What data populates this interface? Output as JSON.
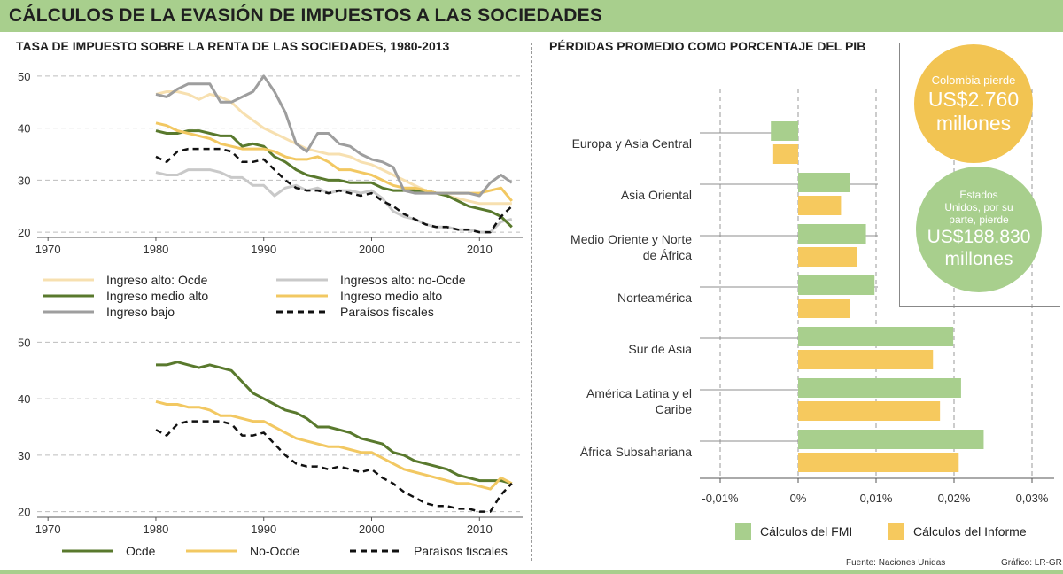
{
  "header": {
    "title": "CÁLCULOS DE LA EVASIÓN DE IMPUESTOS A LAS SOCIEDADES",
    "left_subtitle": "TASA DE IMPUESTO SOBRE LA RENTA DE LAS SOCIEDADES, 1980-2013",
    "right_subtitle": "PÉRDIDAS PROMEDIO COMO PORCENTAJE DEL PIB"
  },
  "colors": {
    "banner": "#a8cf8d",
    "ingreso_alto_ocde": "#f7e0b0",
    "ingresos_alto_no_ocde": "#c9c9c9",
    "ingreso_medio_alto": "#59792d",
    "ingreso_bajo": "#9e9e9e",
    "medio_alto_yellow": "#f2c862",
    "paraisos": "#111111",
    "fmi": "#a8cf8d",
    "informe": "#f6c95e",
    "bubble_yellow": "#f2c452",
    "bubble_green": "#a8cf8d"
  },
  "chart_data": [
    {
      "type": "line",
      "title": "TASA DE IMPUESTO SOBRE LA RENTA DE LAS SOCIEDADES, 1980-2013",
      "x": [
        1980,
        1981,
        1982,
        1983,
        1984,
        1985,
        1986,
        1987,
        1988,
        1989,
        1990,
        1991,
        1992,
        1993,
        1994,
        1995,
        1996,
        1997,
        1998,
        1999,
        2000,
        2001,
        2002,
        2003,
        2004,
        2005,
        2006,
        2007,
        2008,
        2009,
        2010,
        2011,
        2012,
        2013
      ],
      "xlim": [
        1969,
        2014
      ],
      "ylim": [
        19,
        51
      ],
      "xticks": [
        "1970",
        "1980",
        "1990",
        "2000",
        "2010"
      ],
      "yticks": [
        "20",
        "30",
        "40",
        "50"
      ],
      "series": [
        {
          "name": "Ingreso alto: Ocde",
          "style": "solid",
          "color_key": "ingreso_alto_ocde",
          "values": [
            46.5,
            47,
            47,
            46.5,
            45.5,
            46.5,
            46,
            45,
            43,
            41.5,
            40,
            39,
            38,
            37,
            36,
            35.5,
            35,
            35,
            34.5,
            33.5,
            33,
            32,
            31,
            30,
            29,
            28,
            27.5,
            27,
            26.5,
            26,
            25.5,
            25.5,
            25.5,
            25.5
          ]
        },
        {
          "name": "Ingresos alto: no-Ocde",
          "style": "solid",
          "color_key": "ingresos_alto_no_ocde",
          "values": [
            31.5,
            31,
            31,
            32,
            32,
            32,
            31.5,
            30.5,
            30.5,
            29,
            29,
            27,
            28.5,
            29,
            28,
            28.5,
            27.5,
            28,
            28,
            27.5,
            28,
            26.5,
            24,
            23,
            22.5,
            21.5,
            21,
            21,
            20.5,
            20.5,
            20,
            20,
            22,
            22.5
          ]
        },
        {
          "name": "Ingreso medio alto",
          "style": "solid",
          "color_key": "ingreso_medio_alto",
          "values": [
            39.5,
            39,
            39,
            39.5,
            39.5,
            39,
            38.5,
            38.5,
            36.5,
            37,
            36.5,
            34.5,
            33.5,
            32,
            31,
            30.5,
            30,
            30,
            29.5,
            29.5,
            29.5,
            28.5,
            28,
            28,
            28,
            28,
            27.5,
            27,
            26,
            25,
            24.5,
            24,
            23,
            21
          ]
        },
        {
          "name": "Ingreso medio alto",
          "style": "solid",
          "color_key": "medio_alto_yellow",
          "values": [
            41,
            40.5,
            39.5,
            39,
            38.5,
            38,
            37,
            36.5,
            36,
            36,
            36,
            35.5,
            34.5,
            34,
            34,
            34.5,
            33.5,
            32,
            32,
            31.5,
            31,
            30,
            29,
            28.5,
            28.5,
            28,
            27.5,
            27.5,
            27.5,
            27.5,
            27.5,
            28,
            28.5,
            26
          ]
        },
        {
          "name": "Ingreso bajo",
          "style": "solid",
          "color_key": "ingreso_bajo",
          "values": [
            46.5,
            46,
            47.5,
            48.5,
            48.5,
            48.5,
            45,
            45,
            46,
            47,
            50,
            47,
            43,
            37,
            35.5,
            39,
            39,
            37,
            36.5,
            35,
            34,
            33.5,
            32.5,
            28,
            27.5,
            27.5,
            27.5,
            27.5,
            27.5,
            27.5,
            27,
            29.5,
            31,
            29.5
          ]
        },
        {
          "name": "Paraísos fiscales",
          "style": "dashed",
          "color_key": "paraisos",
          "values": [
            34.5,
            33.5,
            35.5,
            36,
            36,
            36,
            36,
            35.5,
            33.5,
            33.5,
            34,
            32,
            30,
            28.5,
            28,
            28,
            27.5,
            28,
            27.5,
            27,
            27.5,
            26,
            25,
            23.5,
            22.5,
            21.5,
            21,
            21,
            20.5,
            20.5,
            20,
            20,
            23,
            25
          ]
        }
      ],
      "legend": [
        "Ingreso alto: Ocde",
        "Ingresos alto: no-Ocde",
        "Ingreso medio alto",
        "Ingreso medio alto",
        "Ingreso bajo",
        "Paraísos fiscales"
      ]
    },
    {
      "type": "line",
      "x": [
        1980,
        1981,
        1982,
        1983,
        1984,
        1985,
        1986,
        1987,
        1988,
        1989,
        1990,
        1991,
        1992,
        1993,
        1994,
        1995,
        1996,
        1997,
        1998,
        1999,
        2000,
        2001,
        2002,
        2003,
        2004,
        2005,
        2006,
        2007,
        2008,
        2009,
        2010,
        2011,
        2012,
        2013
      ],
      "xlim": [
        1969,
        2014
      ],
      "ylim": [
        19,
        51
      ],
      "xticks": [
        "1970",
        "1980",
        "1990",
        "2000",
        "2010"
      ],
      "yticks": [
        "20",
        "30",
        "40",
        "50"
      ],
      "series": [
        {
          "name": "Ocde",
          "style": "solid",
          "color_key": "ingreso_medio_alto",
          "values": [
            46,
            46,
            46.5,
            46,
            45.5,
            46,
            45.5,
            45,
            43,
            41,
            40,
            39,
            38,
            37.5,
            36.5,
            35,
            35,
            34.5,
            34,
            33,
            32.5,
            32,
            30.5,
            30,
            29,
            28.5,
            28,
            27.5,
            26.5,
            26,
            25.5,
            25.5,
            25.5,
            25
          ]
        },
        {
          "name": "No-Ocde",
          "style": "solid",
          "color_key": "medio_alto_yellow",
          "values": [
            39.5,
            39,
            39,
            38.5,
            38.5,
            38,
            37,
            37,
            36.5,
            36,
            36,
            35,
            34,
            33,
            32.5,
            32,
            31.5,
            31.5,
            31,
            30.5,
            30.5,
            29.5,
            28.5,
            27.5,
            27,
            26.5,
            26,
            25.5,
            25,
            25,
            24.5,
            24,
            26,
            25
          ]
        },
        {
          "name": "Paraísos fiscales",
          "style": "dashed",
          "color_key": "paraisos",
          "values": [
            34.5,
            33.5,
            35.5,
            36,
            36,
            36,
            36,
            35.5,
            33.5,
            33.5,
            34,
            32,
            30,
            28.5,
            28,
            28,
            27.5,
            28,
            27.5,
            27,
            27.5,
            26,
            25,
            23.5,
            22.5,
            21.5,
            21,
            21,
            20.5,
            20.5,
            20,
            20,
            23,
            25
          ]
        }
      ],
      "legend": [
        "Ocde",
        "No-Ocde",
        "Paraísos fiscales"
      ]
    },
    {
      "type": "bar",
      "orientation": "horizontal",
      "title": "PÉRDIDAS PROMEDIO COMO PORCENTAJE DEL PIB",
      "categories": [
        [
          "Europa y Asia Central"
        ],
        [
          "Asia Oriental"
        ],
        [
          "Medio Oriente y Norte",
          "de África"
        ],
        [
          "Norteamérica"
        ],
        [
          "Sur de Asia"
        ],
        [
          "América Latina y el",
          "Caribe"
        ],
        [
          "África Subsahariana"
        ]
      ],
      "xlim": [
        -0.012,
        0.032
      ],
      "xticks": [
        {
          "value": -0.01,
          "label": "-0,01%"
        },
        {
          "value": 0,
          "label": "0%"
        },
        {
          "value": 0.01,
          "label": "0,01%"
        },
        {
          "value": 0.02,
          "label": "0,02%"
        },
        {
          "value": 0.03,
          "label": "0,03%"
        }
      ],
      "series": [
        {
          "name": "Cálculos del FMI",
          "color_key": "fmi",
          "values": [
            -0.0035,
            0.0067,
            0.0087,
            0.0098,
            0.0199,
            0.0209,
            0.0238
          ]
        },
        {
          "name": "Cálculos del Informe",
          "color_key": "informe",
          "values": [
            -0.0032,
            0.0055,
            0.0075,
            0.0067,
            0.0173,
            0.0182,
            0.0206
          ]
        }
      ],
      "legend": [
        "Cálculos del FMI",
        "Cálculos del Informe"
      ]
    }
  ],
  "callouts": {
    "colombia": [
      "Colombia pierde",
      "US$2.760",
      "millones"
    ],
    "usa": [
      "Estados",
      "Unidos, por su",
      "parte, pierde",
      "US$188.830",
      "millones"
    ]
  },
  "footer": {
    "source": "Fuente: Naciones Unidas",
    "credit": "Gráfico: LR-GR"
  }
}
